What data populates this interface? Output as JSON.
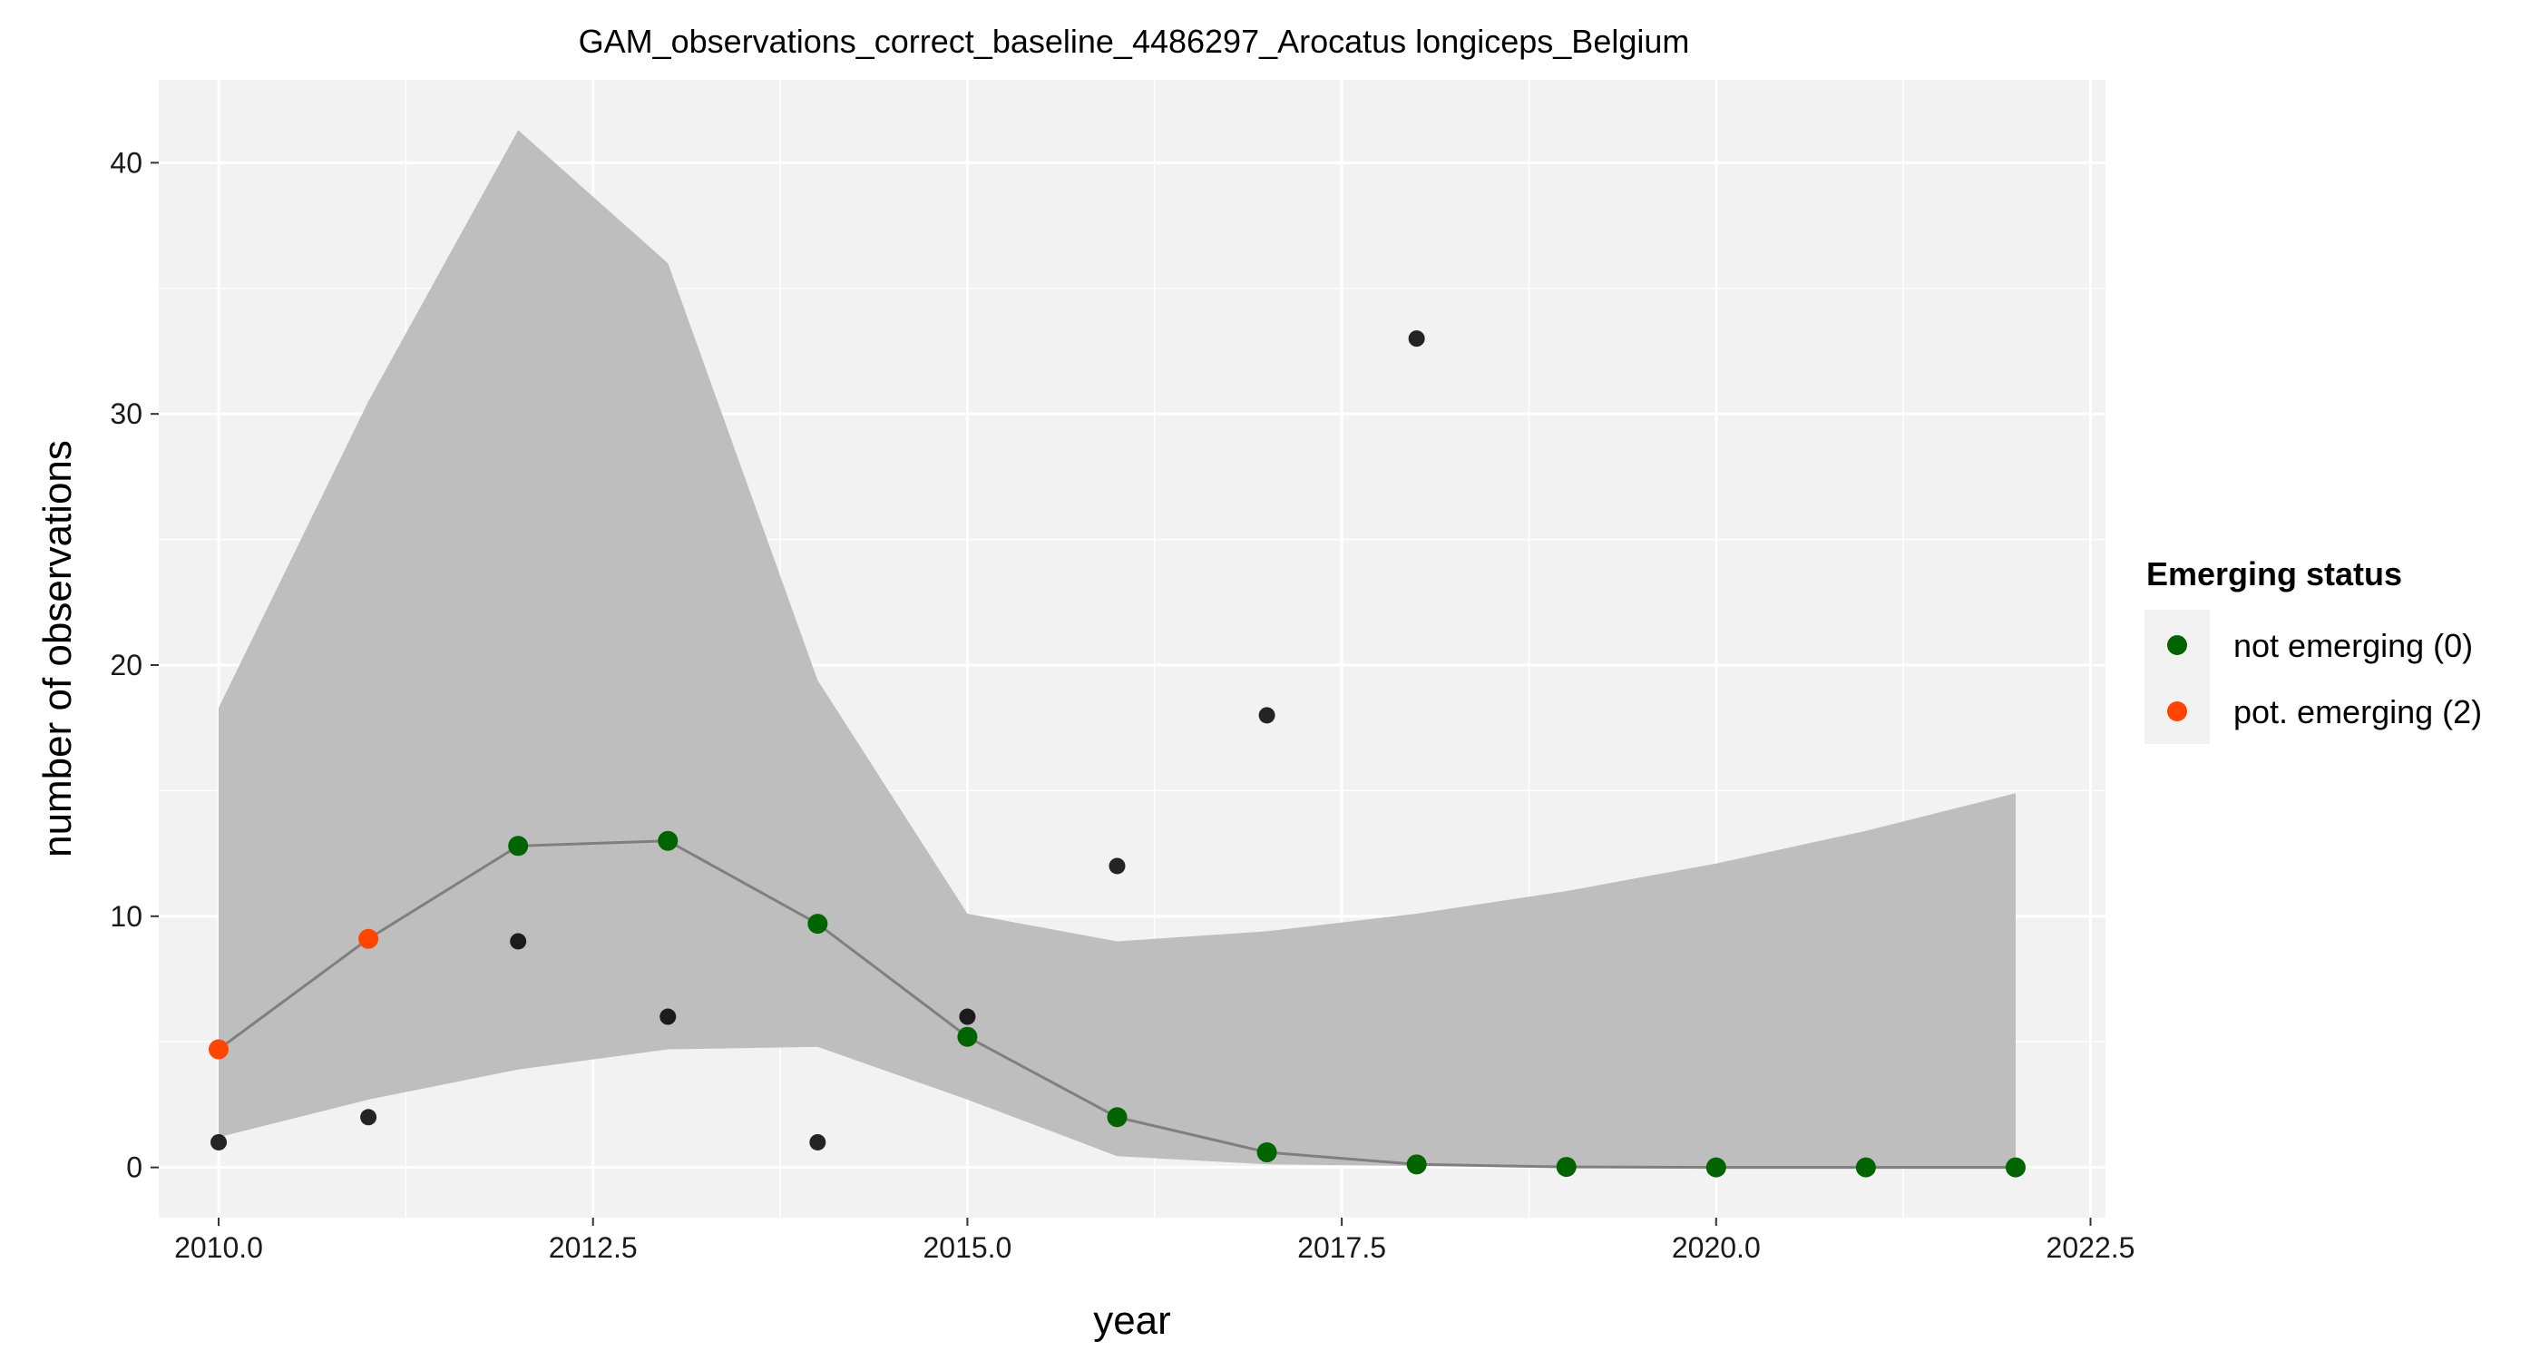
{
  "chart_data": {
    "type": "line",
    "title": "GAM_observations_correct_baseline_4486297_Arocatus longiceps_Belgium",
    "xlabel": "year",
    "ylabel": "number of observations",
    "xlim": [
      2009.6,
      2022.6
    ],
    "ylim": [
      -2,
      43.3
    ],
    "x_ticks": [
      2010.0,
      2012.5,
      2015.0,
      2017.5,
      2020.0,
      2022.5
    ],
    "x_tick_labels": [
      "2010.0",
      "2012.5",
      "2015.0",
      "2017.5",
      "2020.0",
      "2022.5"
    ],
    "y_ticks": [
      0,
      10,
      20,
      30,
      40
    ],
    "y_tick_labels": [
      "0",
      "10",
      "20",
      "30",
      "40"
    ],
    "grid": true,
    "legend_position": "right",
    "legend": {
      "title": "Emerging status",
      "entries": [
        {
          "label": "not emerging (0)",
          "color": "#006400"
        },
        {
          "label": "pot. emerging (2)",
          "color": "#FF4500"
        }
      ]
    },
    "observed": {
      "color": "#000000",
      "x": [
        2010,
        2011,
        2012,
        2013,
        2014,
        2015,
        2016,
        2017,
        2018
      ],
      "y": [
        1,
        2,
        9,
        6,
        1,
        6,
        12,
        18,
        33
      ]
    },
    "fit": {
      "line_color": "#7f7f7f",
      "x": [
        2010,
        2011,
        2012,
        2013,
        2014,
        2015,
        2016,
        2017,
        2018,
        2019,
        2020,
        2021,
        2022
      ],
      "y": [
        4.7,
        9.1,
        12.8,
        13.0,
        9.7,
        5.2,
        2.0,
        0.6,
        0.12,
        0.02,
        0.0,
        0.0,
        0.0
      ],
      "status": [
        2,
        2,
        0,
        0,
        0,
        0,
        0,
        0,
        0,
        0,
        0,
        0,
        0
      ]
    },
    "confidence_band": {
      "color": "#bebebe",
      "lower": [
        1.2,
        2.7,
        3.9,
        4.7,
        4.8,
        2.7,
        0.45,
        0.12,
        0.06,
        0.0,
        0.0,
        0.0,
        0.0
      ],
      "upper": [
        18.3,
        30.5,
        41.3,
        36.0,
        19.4,
        10.1,
        9.0,
        9.4,
        10.1,
        11.0,
        12.1,
        13.4,
        14.9
      ]
    },
    "status_colors": {
      "0": "#006400",
      "2": "#FF4500"
    }
  }
}
